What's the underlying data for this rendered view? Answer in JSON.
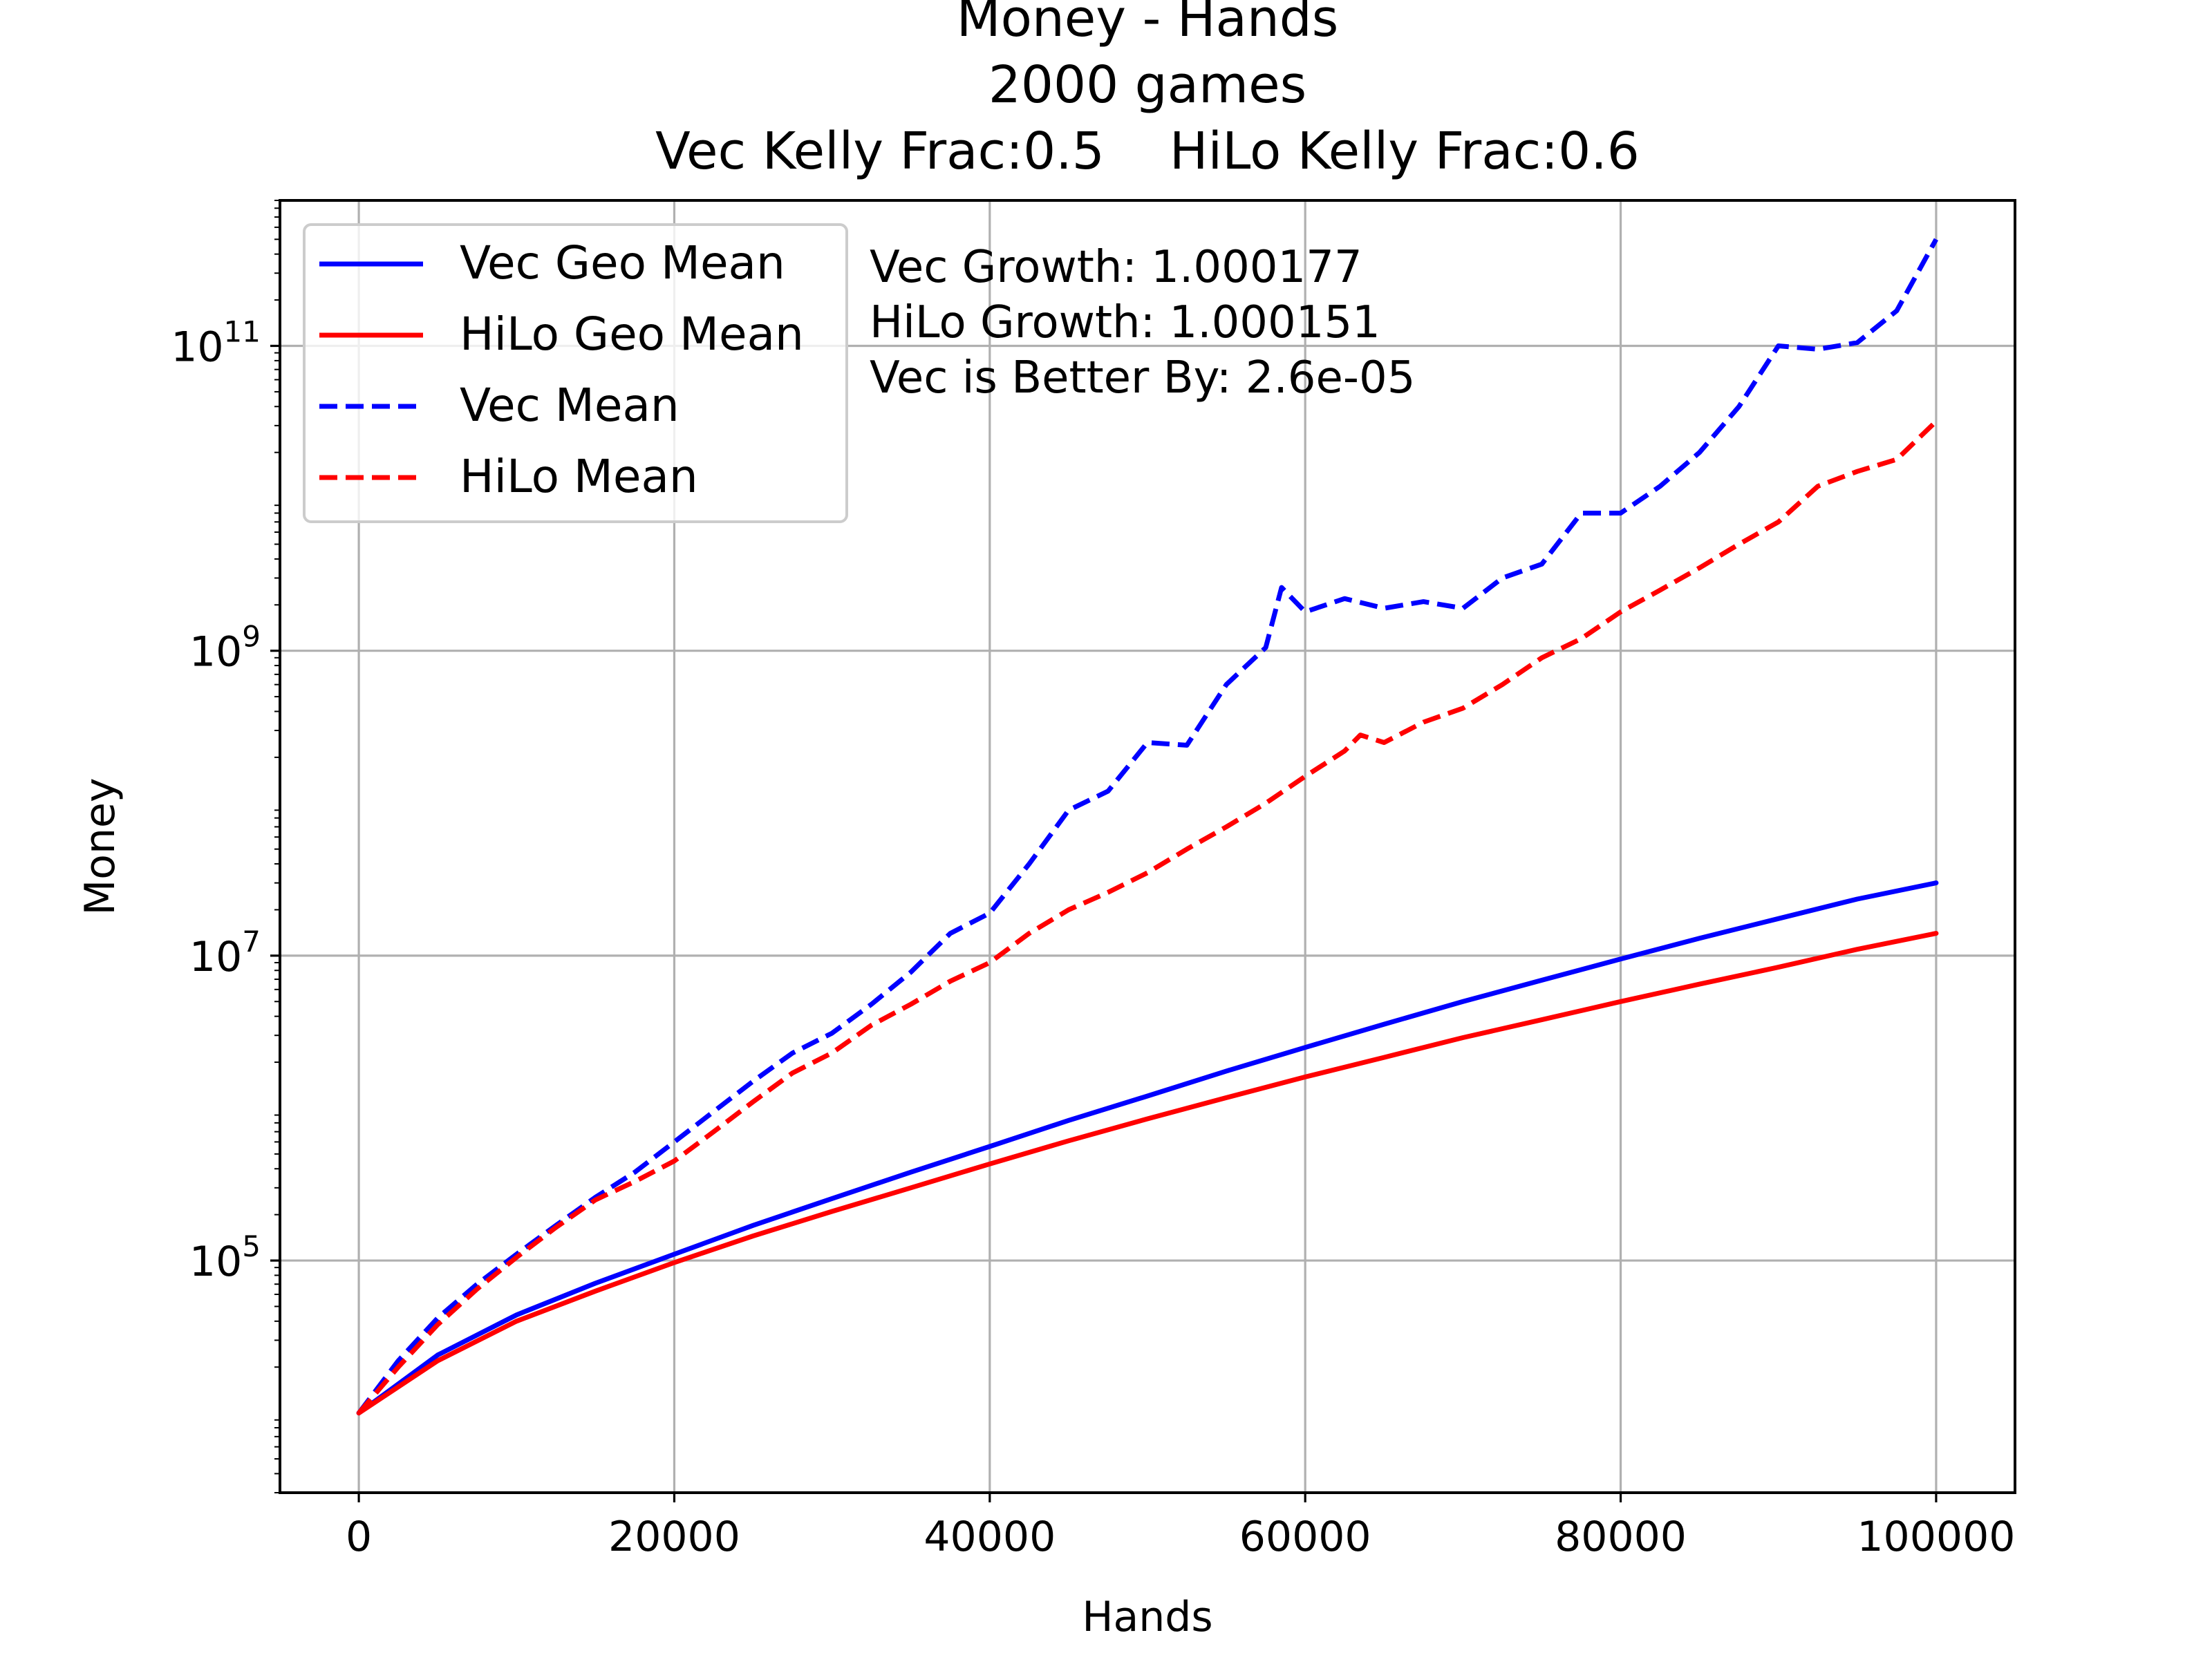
{
  "chart_data": {
    "type": "line",
    "title_lines": [
      "Money - Hands",
      "2000 games",
      "Vec Kelly Frac:0.5    HiLo Kelly Frac:0.6"
    ],
    "xlabel": "Hands",
    "ylabel": "Money",
    "xlim": [
      -5000,
      105000
    ],
    "ylim": [
      3000,
      900000000000
    ],
    "y_scale": "log",
    "x_ticks": [
      0,
      20000,
      40000,
      60000,
      80000,
      100000
    ],
    "x_tick_labels": [
      "0",
      "20000",
      "40000",
      "60000",
      "80000",
      "100000"
    ],
    "y_ticks": [
      100000,
      10000000,
      1000000000,
      100000000000
    ],
    "y_tick_bases": [
      "10",
      "10",
      "10",
      "10"
    ],
    "y_tick_exponents": [
      "5",
      "7",
      "9",
      "11"
    ],
    "grid": true,
    "legend_position": "upper-left",
    "annotations": [
      "Vec Growth: 1.000177",
      "HiLo Growth: 1.000151",
      "Vec is Better By: 2.6e-05"
    ],
    "series": [
      {
        "name": "Vec Geo Mean",
        "color": "#0000ff",
        "style": "solid",
        "x": [
          0,
          5000,
          10000,
          15000,
          20000,
          25000,
          30000,
          35000,
          40000,
          45000,
          50000,
          55000,
          60000,
          65000,
          70000,
          75000,
          80000,
          85000,
          90000,
          95000,
          100000
        ],
        "y": [
          10000,
          24000,
          44000,
          71000,
          110000,
          170000,
          255000,
          380000,
          560000,
          830000,
          1200000,
          1750000,
          2500000,
          3550000,
          5000000,
          6900000,
          9500000,
          13000000,
          17500000,
          23500000,
          30000000
        ]
      },
      {
        "name": "HiLo Geo Mean",
        "color": "#ff0000",
        "style": "solid",
        "x": [
          0,
          5000,
          10000,
          15000,
          20000,
          25000,
          30000,
          35000,
          40000,
          45000,
          50000,
          55000,
          60000,
          65000,
          70000,
          75000,
          80000,
          85000,
          90000,
          95000,
          100000
        ],
        "y": [
          10000,
          22000,
          40000,
          63000,
          97000,
          145000,
          210000,
          300000,
          430000,
          610000,
          850000,
          1170000,
          1600000,
          2150000,
          2900000,
          3800000,
          5000000,
          6500000,
          8400000,
          11000000,
          14000000
        ]
      },
      {
        "name": "Vec Mean",
        "color": "#0000ff",
        "style": "dashed",
        "x": [
          0,
          2500,
          5000,
          7500,
          10000,
          12500,
          15000,
          17500,
          20000,
          22500,
          25000,
          27500,
          30000,
          32500,
          35000,
          37500,
          40000,
          42500,
          45000,
          47500,
          50000,
          52500,
          55000,
          57500,
          58500,
          60000,
          62500,
          65000,
          67500,
          70000,
          72500,
          75000,
          77500,
          80000,
          82500,
          85000,
          87500,
          90000,
          92500,
          95000,
          97500,
          100000
        ],
        "y": [
          10000,
          22000,
          42000,
          70000,
          110000,
          170000,
          260000,
          380000,
          600000,
          950000,
          1500000,
          2300000,
          3100000,
          4800000,
          7800000,
          14000000,
          19000000,
          40000000,
          90000000,
          120000000,
          250000000,
          240000000,
          600000000,
          1050000000,
          2600000000,
          1800000000,
          2200000000,
          1900000000,
          2100000000,
          1900000000,
          3000000000,
          3700000000,
          8000000000,
          8000000000,
          12000000000,
          20000000000,
          40000000000,
          100000000000,
          95000000000,
          105000000000,
          170000000000,
          500000000000
        ]
      },
      {
        "name": "HiLo Mean",
        "color": "#ff0000",
        "style": "dashed",
        "x": [
          0,
          2500,
          5000,
          7500,
          10000,
          12500,
          15000,
          17500,
          20000,
          22500,
          25000,
          27500,
          30000,
          32500,
          35000,
          37500,
          40000,
          42500,
          45000,
          47500,
          50000,
          52500,
          55000,
          57500,
          60000,
          62500,
          63500,
          65000,
          67500,
          70000,
          72500,
          75000,
          77500,
          80000,
          82500,
          85000,
          87500,
          90000,
          92500,
          95000,
          97500,
          100000
        ],
        "y": [
          10000,
          20000,
          38000,
          65000,
          105000,
          165000,
          250000,
          330000,
          450000,
          700000,
          1100000,
          1700000,
          2300000,
          3500000,
          4800000,
          6800000,
          9000000,
          14000000,
          20000000,
          26000000,
          35000000,
          50000000,
          70000000,
          100000000,
          150000000,
          220000000,
          280000000,
          250000000,
          340000000,
          420000000,
          600000000,
          900000000,
          1200000000,
          1800000000,
          2500000000,
          3500000000,
          5000000000,
          7000000000,
          12000000000,
          15000000000,
          18000000000,
          32000000000
        ]
      }
    ]
  }
}
